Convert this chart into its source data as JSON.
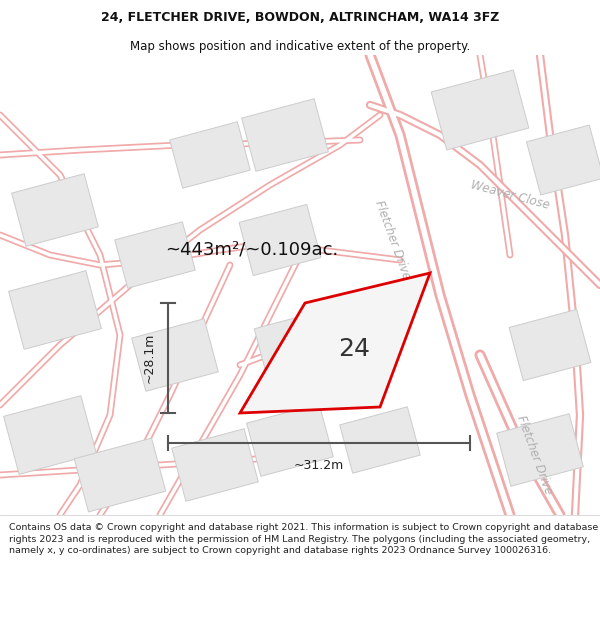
{
  "title_line1": "24, FLETCHER DRIVE, BOWDON, ALTRINCHAM, WA14 3FZ",
  "title_line2": "Map shows position and indicative extent of the property.",
  "footer_text": "Contains OS data © Crown copyright and database right 2021. This information is subject to Crown copyright and database rights 2023 and is reproduced with the permission of HM Land Registry. The polygons (including the associated geometry, namely x, y co-ordinates) are subject to Crown copyright and database rights 2023 Ordnance Survey 100026316.",
  "area_label": "~443m²/~0.109ac.",
  "property_number": "24",
  "dim_width": "~31.2m",
  "dim_height": "~28.1m",
  "road_color": "#f0aaaa",
  "road_center_color": "#ffffff",
  "building_fill": "#e8e8e8",
  "building_stroke": "#d0d0d0",
  "property_fill": "#f0f0f0",
  "property_stroke": "#dd0000",
  "road_label_color": "#b0b0b0",
  "dim_color": "#555555",
  "map_bg": "#f9f9f9",
  "fig_width": 6.0,
  "fig_height": 6.25,
  "title_fontsize": 9.0,
  "subtitle_fontsize": 8.5,
  "footer_fontsize": 6.8
}
